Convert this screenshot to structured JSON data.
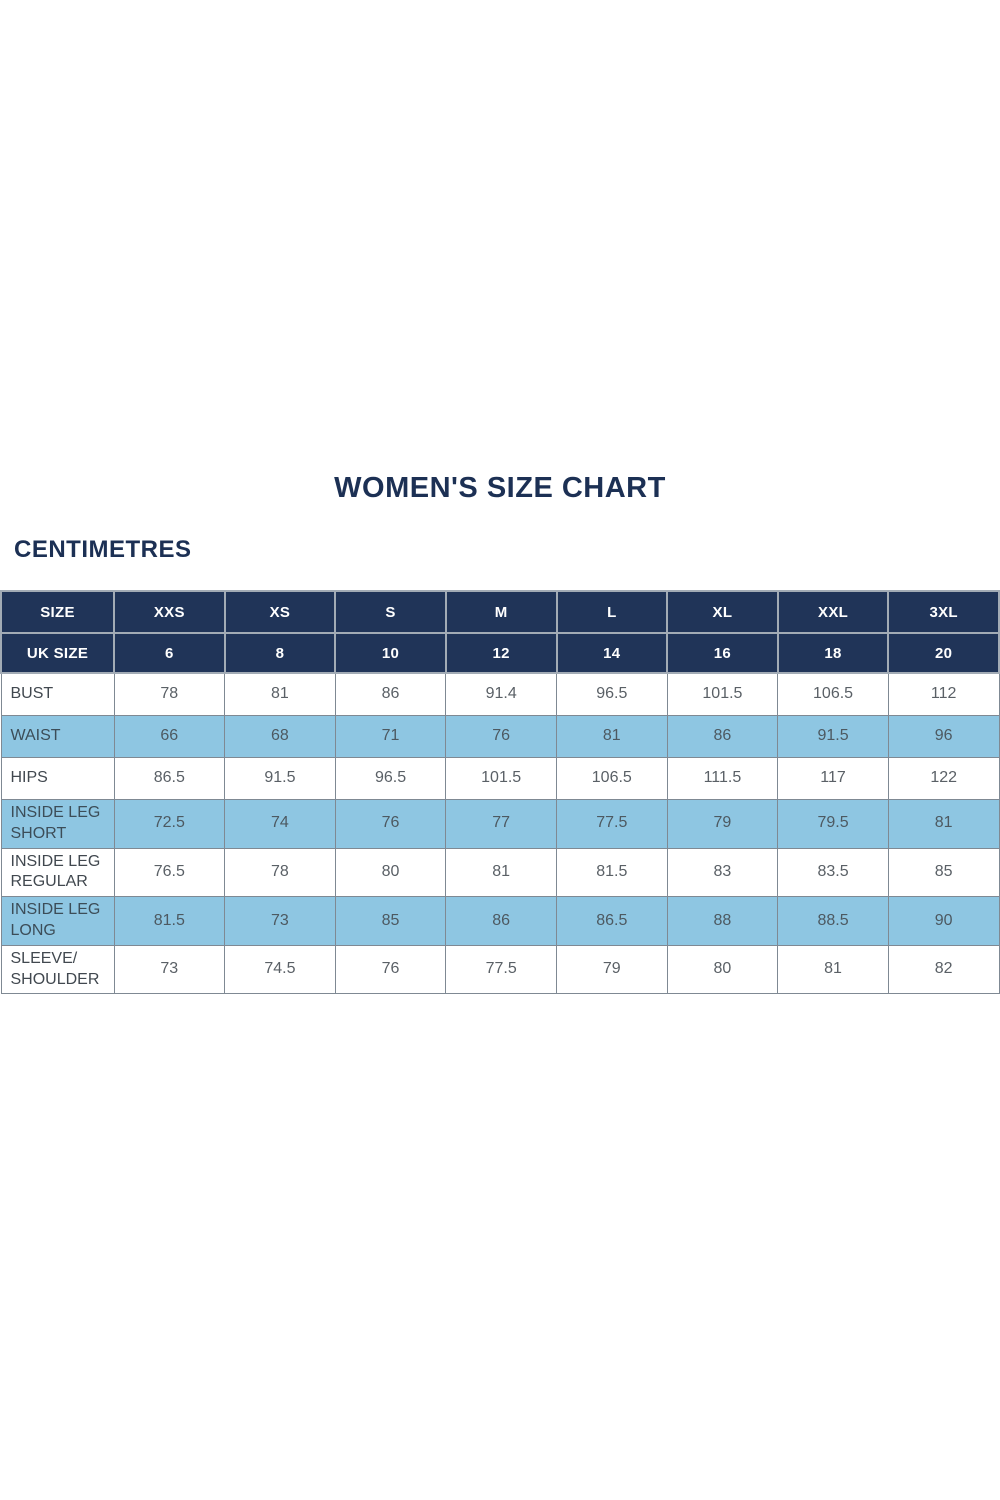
{
  "page": {
    "title": "WOMEN'S SIZE CHART",
    "unit_label": "CENTIMETRES"
  },
  "colors": {
    "header_navy": "#203458",
    "highlight_blue": "#8ec6e2",
    "title_text": "#1c3054",
    "header_text": "#ffffff",
    "body_text": "#5a6066",
    "label_text": "#41484f",
    "grid_border": "#7f8993",
    "header_border": "#a2abb5",
    "background": "#ffffff"
  },
  "chart_data": {
    "type": "table",
    "title": "WOMEN'S SIZE CHART",
    "unit": "CENTIMETRES",
    "columns": [
      "SIZE",
      "XXS",
      "XS",
      "S",
      "M",
      "L",
      "XL",
      "XXL",
      "3XL"
    ],
    "uk_size_row": [
      "UK SIZE",
      "6",
      "8",
      "10",
      "12",
      "14",
      "16",
      "18",
      "20"
    ],
    "rows": [
      {
        "label": "BUST",
        "highlight": false,
        "values": [
          "78",
          "81",
          "86",
          "91.4",
          "96.5",
          "101.5",
          "106.5",
          "112"
        ]
      },
      {
        "label": "WAIST",
        "highlight": true,
        "values": [
          "66",
          "68",
          "71",
          "76",
          "81",
          "86",
          "91.5",
          "96"
        ]
      },
      {
        "label": "HIPS",
        "highlight": false,
        "values": [
          "86.5",
          "91.5",
          "96.5",
          "101.5",
          "106.5",
          "111.5",
          "117",
          "122"
        ]
      },
      {
        "label": "INSIDE LEG SHORT",
        "highlight": true,
        "values": [
          "72.5",
          "74",
          "76",
          "77",
          "77.5",
          "79",
          "79.5",
          "81"
        ]
      },
      {
        "label": "INSIDE LEG REGULAR",
        "highlight": false,
        "values": [
          "76.5",
          "78",
          "80",
          "81",
          "81.5",
          "83",
          "83.5",
          "85"
        ]
      },
      {
        "label": "INSIDE LEG LONG",
        "highlight": true,
        "values": [
          "81.5",
          "73",
          "85",
          "86",
          "86.5",
          "88",
          "88.5",
          "90"
        ]
      },
      {
        "label": "SLEEVE/ SHOULDER",
        "highlight": false,
        "values": [
          "73",
          "74.5",
          "76",
          "77.5",
          "79",
          "80",
          "81",
          "82"
        ]
      }
    ]
  }
}
